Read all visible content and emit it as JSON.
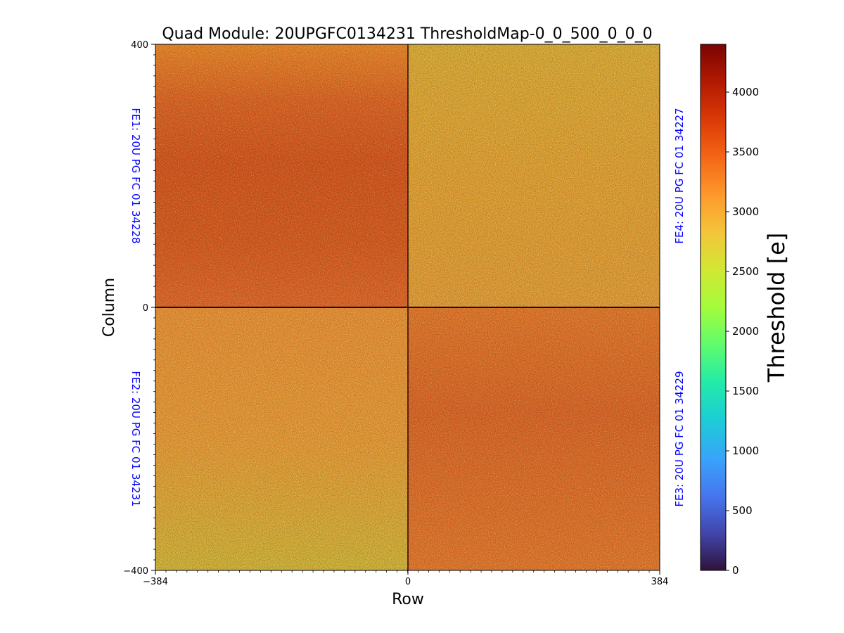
{
  "chart_data": {
    "type": "heatmap",
    "title": "Quad Module: 20UPGFC0134231 ThresholdMap-0_0_500_0_0_0",
    "xlabel": "Row",
    "ylabel": "Column",
    "xlim": [
      -384,
      384
    ],
    "ylim": [
      -400,
      400
    ],
    "x_ticks": [
      "−384",
      "0",
      "384"
    ],
    "y_ticks": [
      "400",
      "0",
      "−400"
    ],
    "colorbar": {
      "label": "Threshold [e]",
      "range": [
        0,
        4400
      ],
      "ticks": [
        "0",
        "500",
        "1000",
        "1500",
        "2000",
        "2500",
        "3000",
        "3500",
        "4000"
      ],
      "colormap": "turbo"
    },
    "quadrants": [
      {
        "name": "FE1",
        "label": "FE1: 20U PG FC 01 34228",
        "position": "top-left",
        "approx_mean_threshold": 3500
      },
      {
        "name": "FE4",
        "label": "FE4: 20U PG FC 01 34227",
        "position": "top-right",
        "approx_mean_threshold": 2800
      },
      {
        "name": "FE2",
        "label": "FE2: 20U PG FC 01 34231",
        "position": "bottom-left",
        "approx_mean_threshold": 2950
      },
      {
        "name": "FE3",
        "label": "FE3: 20U PG FC 01 34229",
        "position": "bottom-right",
        "approx_mean_threshold": 3350
      }
    ],
    "colors": {
      "fe_label": "#0000ff",
      "axis": "#000000"
    }
  }
}
